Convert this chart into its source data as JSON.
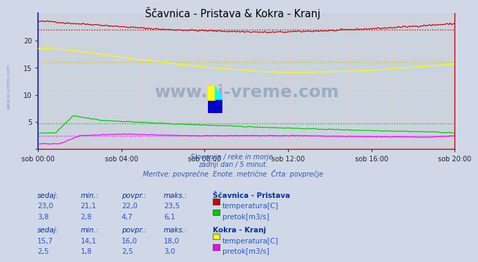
{
  "title": "Ščavnica - Pristava & Kokra - Kranj",
  "bg_color": "#d0d8e8",
  "plot_bg_color": "#c8d4e0",
  "xlabel_ticks": [
    "sob 00:00",
    "sob 04:00",
    "sob 08:00",
    "sob 12:00",
    "sob 16:00",
    "sob 20:00"
  ],
  "subtitle_lines": [
    "Slovenija / reke in morje.",
    "zadnji dan / 5 minut.",
    "Meritve: povprečne  Enote: metrične  Črta: povprečje"
  ],
  "scavnica_temp_color": "#cc0000",
  "scavnica_temp_avg": 22.0,
  "scavnica_flow_color": "#00cc00",
  "scavnica_flow_avg": 4.7,
  "kokra_temp_color": "#ffff00",
  "kokra_temp_avg": 16.0,
  "kokra_flow_color": "#ff00ff",
  "kokra_flow_avg": 2.5,
  "table_text_color": "#2255cc",
  "table_header_color": "#003399",
  "watermark_color": "#1a3a6a",
  "watermark_alpha": 0.25,
  "n_points": 288,
  "ylim": [
    0,
    25
  ],
  "yticks": [
    0,
    5,
    10,
    15,
    20
  ],
  "left_spine_color": "#3333cc",
  "bottom_spine_color": "#cc0000",
  "right_spine_color": "#cc0000",
  "grid_color": "#d4aeb0",
  "grid_pink": "#e8c8c8"
}
